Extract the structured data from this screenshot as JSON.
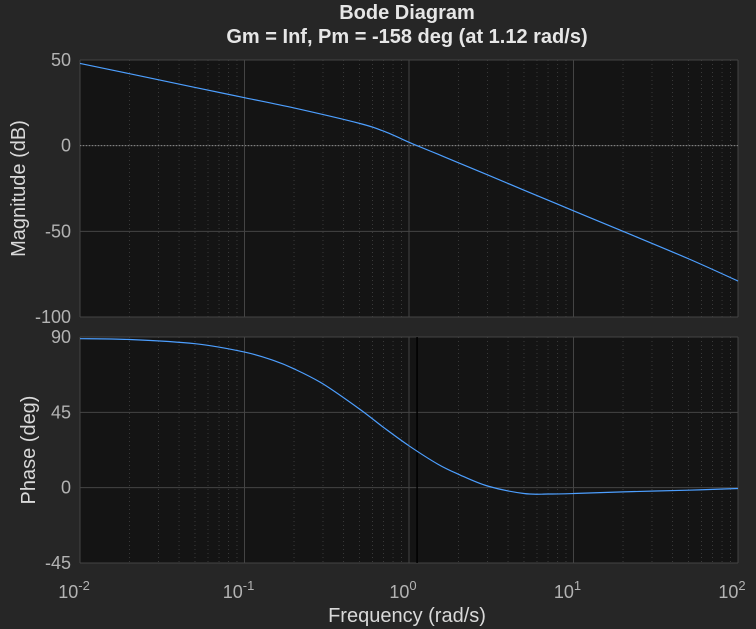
{
  "chart_data": {
    "type": "line",
    "title": "Bode Diagram",
    "subtitle": "Gm = Inf,  Pm = -158 deg (at 1.12 rad/s)",
    "xlabel": "Frequency  (rad/s)",
    "xscale": "log",
    "xlim": [
      0.01,
      100
    ],
    "x_ticks": [
      {
        "base": "10",
        "exp": "-2"
      },
      {
        "base": "10",
        "exp": "-1"
      },
      {
        "base": "10",
        "exp": "0"
      },
      {
        "base": "10",
        "exp": "1"
      },
      {
        "base": "10",
        "exp": "2"
      }
    ],
    "grid": true,
    "colors": {
      "background": "#262626",
      "axes": "#141414",
      "line": "#4d9fff",
      "text": "#e6e6e6",
      "tick": "#b3b3b3"
    },
    "panels": [
      {
        "ylabel": "Magnitude (dB)",
        "ylim": [
          -100,
          50
        ],
        "yticks": [
          "50",
          "0",
          "-50",
          "-100"
        ],
        "ytick_values": [
          50,
          0,
          -50,
          -100
        ],
        "zero_line": true,
        "series": [
          {
            "x": [
              0.01,
              0.02,
              0.05,
              0.1,
              0.2,
              0.5,
              0.7,
              1.0,
              1.12,
              1.5,
              2,
              3,
              5,
              10,
              20,
              50,
              100
            ],
            "y": [
              48,
              42,
              34,
              28,
              22,
              13,
              8.5,
              2,
              0,
              -5,
              -10,
              -17,
              -26,
              -38,
              -50,
              -66,
              -79
            ]
          }
        ]
      },
      {
        "ylabel": "Phase (deg)",
        "ylim": [
          -45,
          90
        ],
        "yticks": [
          "90",
          "45",
          "0",
          "-45"
        ],
        "ytick_values": [
          90,
          45,
          0,
          -45
        ],
        "marker_x": 1.12,
        "series": [
          {
            "x": [
              0.01,
              0.02,
              0.05,
              0.1,
              0.15,
              0.2,
              0.3,
              0.5,
              0.7,
              1.0,
              1.5,
              2,
              3,
              5,
              7,
              10,
              20,
              50,
              100
            ],
            "y": [
              89,
              88.5,
              86,
              81,
              76,
              71,
              62,
              47,
              36,
              25,
              14,
              8,
              1,
              -3.5,
              -3.8,
              -3.5,
              -2.5,
              -1.5,
              -0.5
            ]
          }
        ]
      }
    ]
  }
}
